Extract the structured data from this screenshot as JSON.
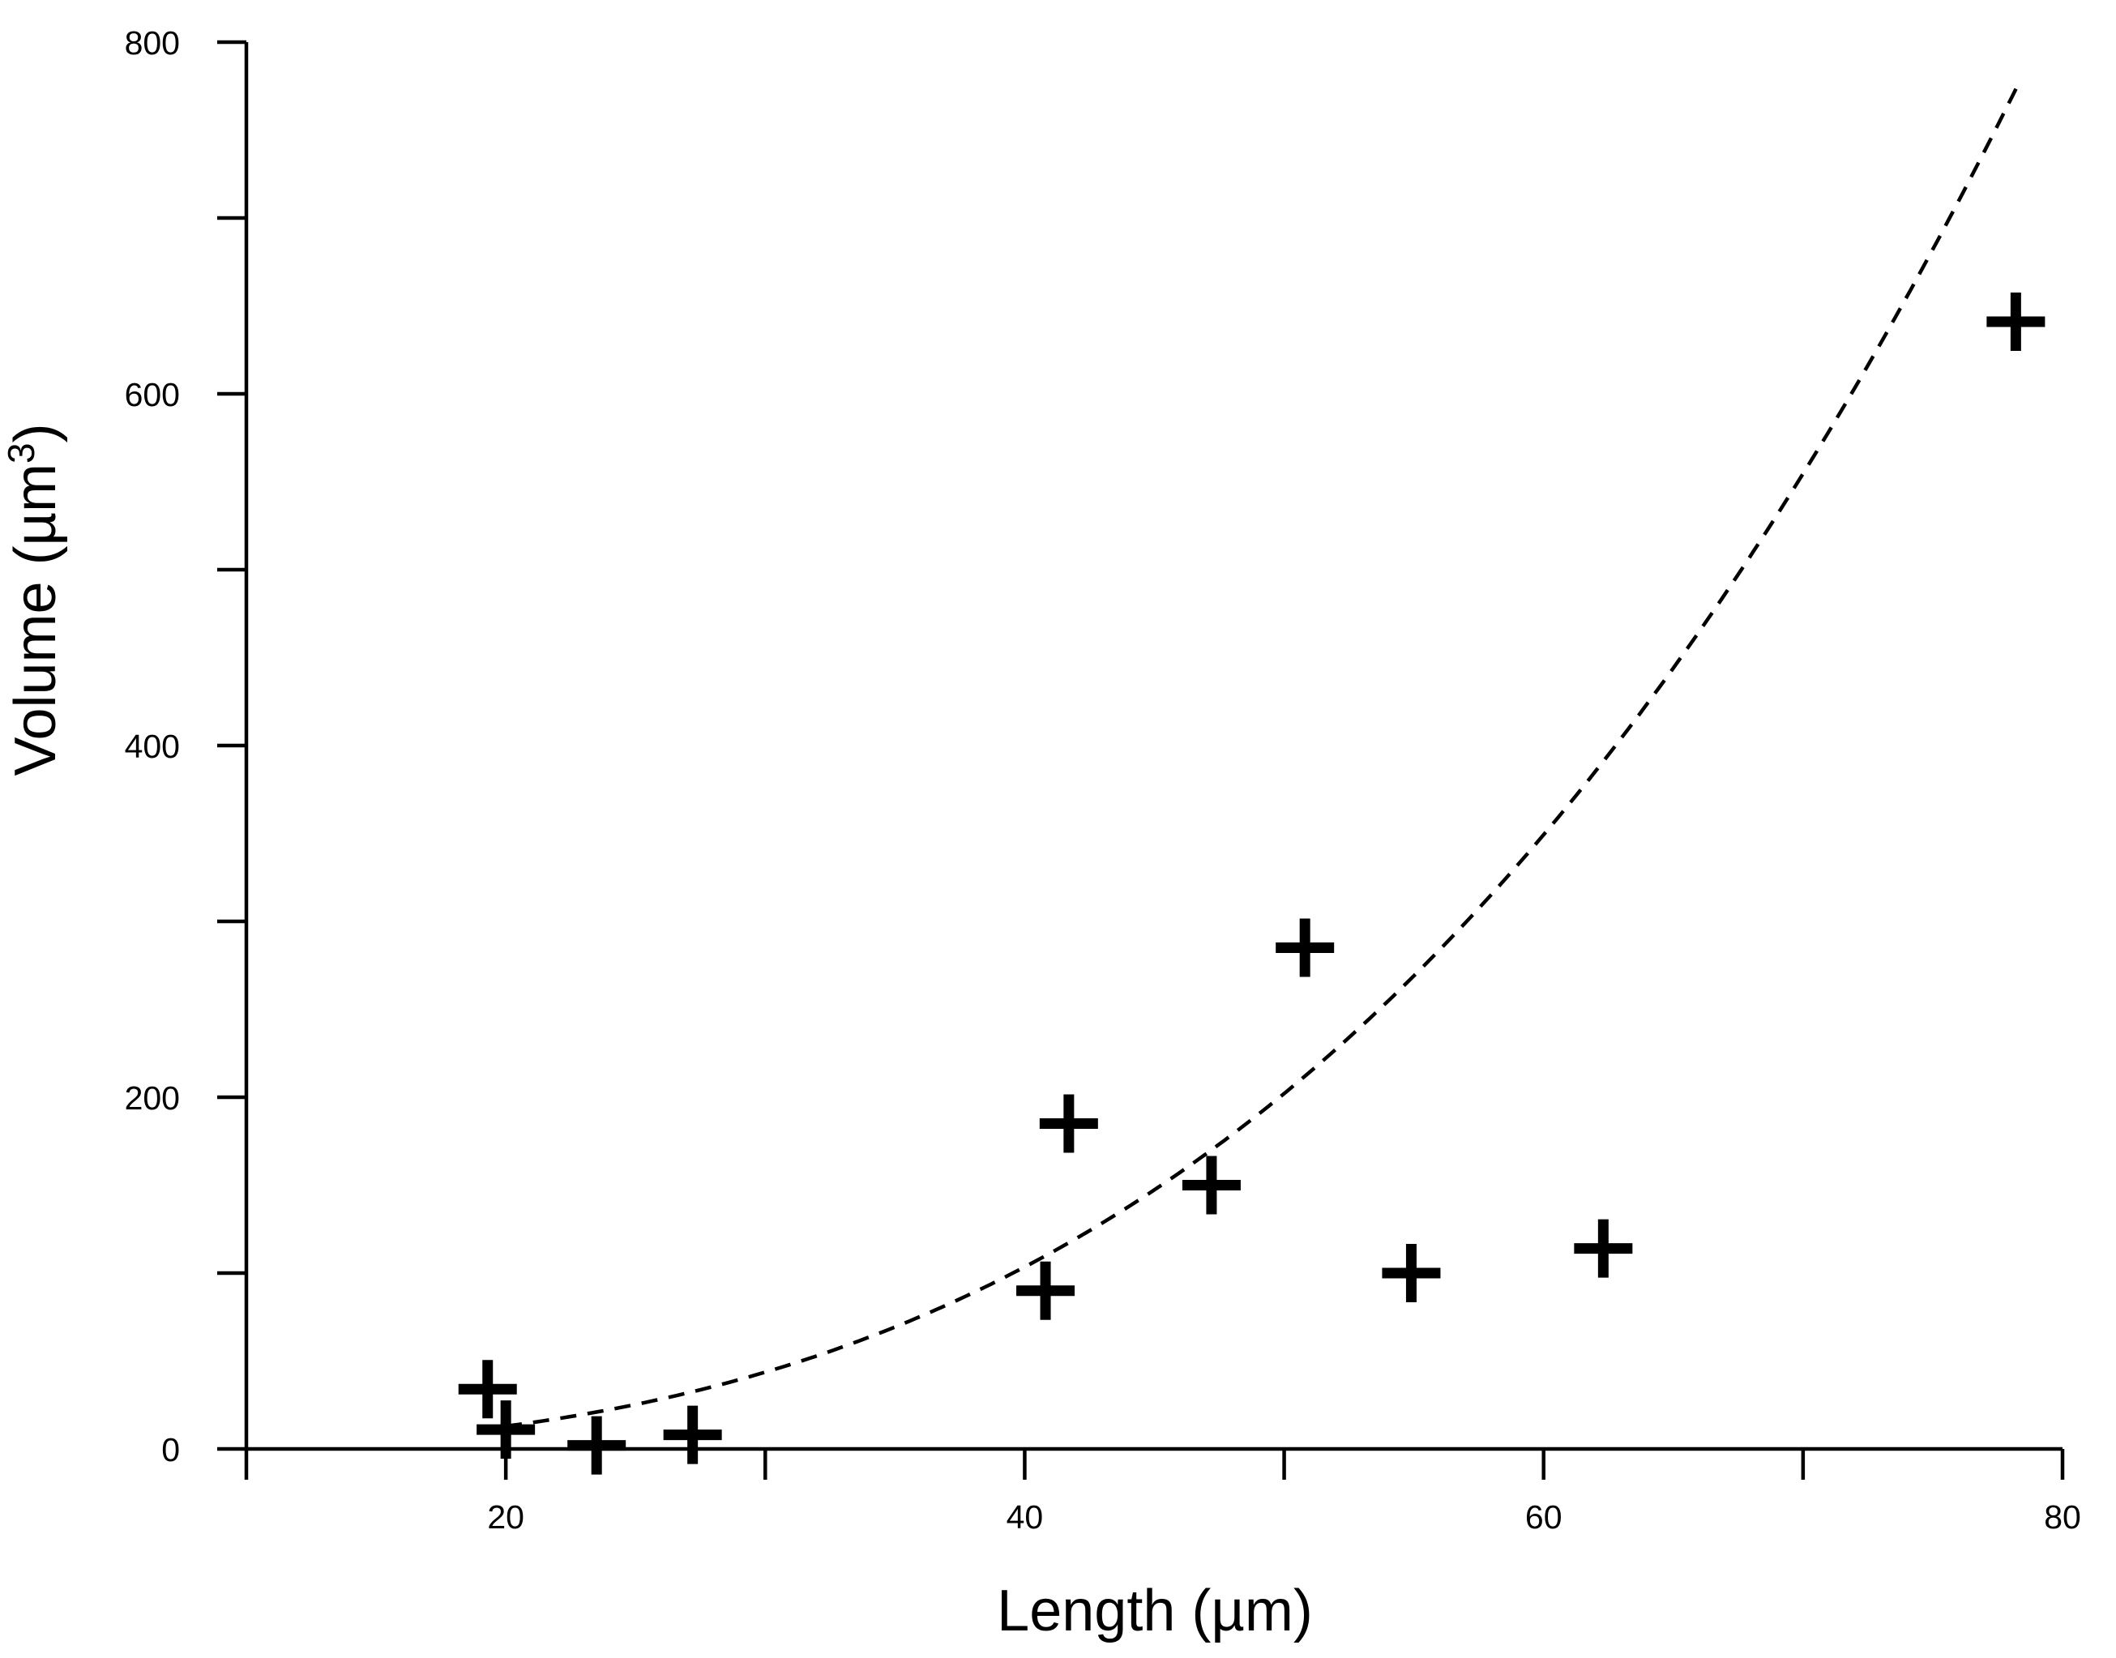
{
  "chart_data": {
    "type": "scatter",
    "xlabel": "Length (µm)",
    "ylabel_main": "Volume (µm",
    "ylabel_sup": "3",
    "ylabel_end": ")",
    "xlim": [
      10,
      80
    ],
    "ylim": [
      0,
      800
    ],
    "x_ticks_major": [
      20,
      40,
      60,
      80
    ],
    "x_ticks_minor": [
      10,
      30,
      50,
      70
    ],
    "y_ticks_major": [
      0,
      200,
      400,
      600,
      800
    ],
    "y_ticks_minor": [
      100,
      300,
      500,
      700
    ],
    "x_tick_labels": [
      "20",
      "40",
      "60",
      "80"
    ],
    "y_tick_labels": [
      "0",
      "200",
      "400",
      "600",
      "800"
    ],
    "grid": false,
    "marker": "plus",
    "points": [
      {
        "x": 19.3,
        "y": 34
      },
      {
        "x": 20.0,
        "y": 11
      },
      {
        "x": 23.5,
        "y": 2
      },
      {
        "x": 27.2,
        "y": 8
      },
      {
        "x": 40.8,
        "y": 90
      },
      {
        "x": 41.7,
        "y": 185
      },
      {
        "x": 47.2,
        "y": 150
      },
      {
        "x": 50.8,
        "y": 285
      },
      {
        "x": 54.9,
        "y": 100
      },
      {
        "x": 62.3,
        "y": 114
      },
      {
        "x": 78.2,
        "y": 641
      }
    ],
    "fit": {
      "style": "dashed",
      "form": "power",
      "coefficient": 0.001617,
      "exponent": 3.0,
      "x_start": 20.0,
      "x_end": 78.3
    }
  }
}
